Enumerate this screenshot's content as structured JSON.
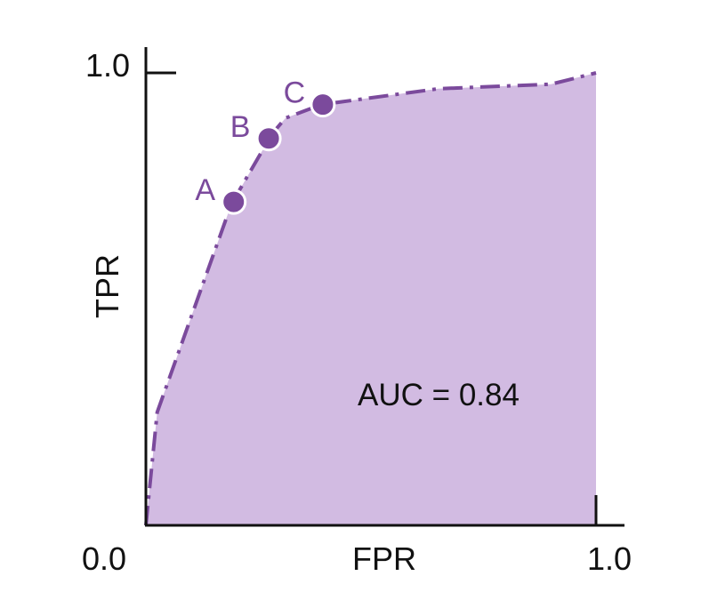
{
  "chart_data": {
    "type": "area",
    "xlabel": "FPR",
    "ylabel": "TPR",
    "xlim": [
      0,
      1
    ],
    "ylim": [
      0,
      1
    ],
    "x_tick_labels": {
      "min": "0.0",
      "max": "1.0"
    },
    "y_tick_labels": {
      "max": "1.0"
    },
    "annotation": "AUC = 0.84",
    "curve": {
      "x": [
        0.0,
        0.025,
        0.19,
        0.28,
        0.31,
        0.39,
        0.65,
        0.9,
        1.0
      ],
      "y": [
        0.0,
        0.25,
        0.71,
        0.865,
        0.9,
        0.93,
        0.965,
        0.975,
        1.0
      ]
    },
    "points": [
      {
        "label": "A",
        "x": 0.195,
        "y": 0.715
      },
      {
        "label": "B",
        "x": 0.273,
        "y": 0.855
      },
      {
        "label": "C",
        "x": 0.393,
        "y": 0.93
      }
    ],
    "grid": false,
    "legend": "none",
    "colors": {
      "fill": "#d2bbe2",
      "line": "#7b4a9c",
      "point": "#7b4a9c",
      "point_label": "#7b4a9c",
      "axis": "#111111"
    }
  }
}
